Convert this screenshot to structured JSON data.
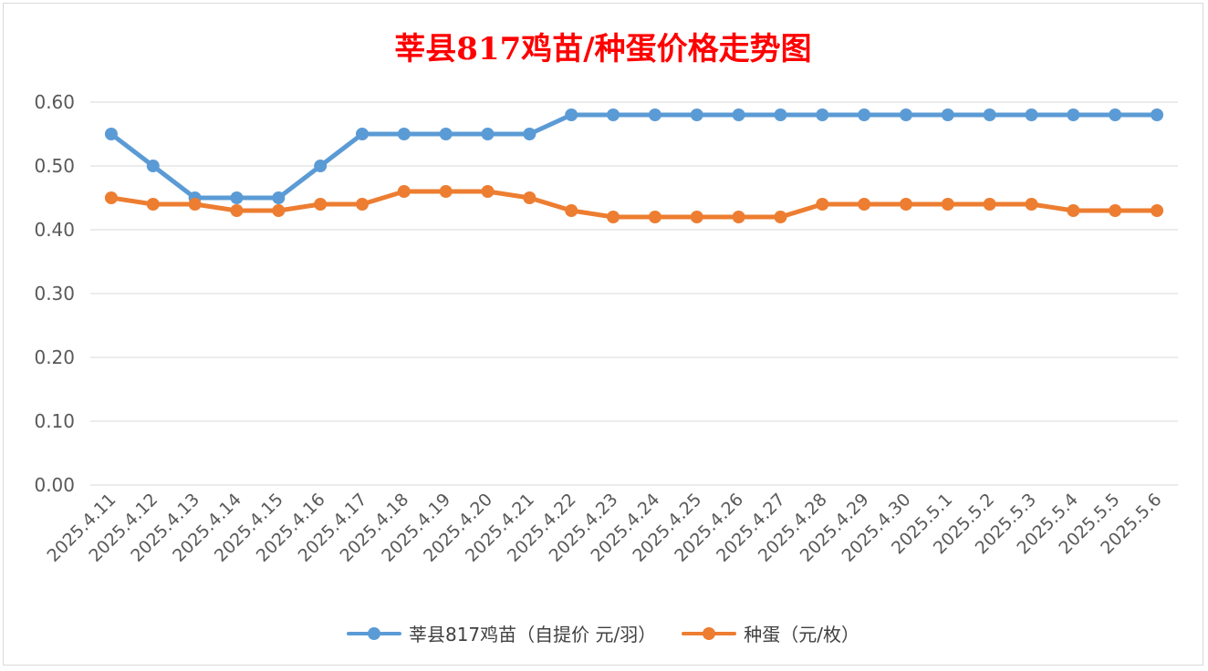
{
  "chart_data": {
    "type": "line",
    "title": "莘县817鸡苗/种蛋价格走势图",
    "categories": [
      "2025.4.11",
      "2025.4.12",
      "2025.4.13",
      "2025.4.14",
      "2025.4.15",
      "2025.4.16",
      "2025.4.17",
      "2025.4.18",
      "2025.4.19",
      "2025.4.20",
      "2025.4.21",
      "2025.4.22",
      "2025.4.23",
      "2025.4.24",
      "2025.4.25",
      "2025.4.26",
      "2025.4.27",
      "2025.4.28",
      "2025.4.29",
      "2025.4.30",
      "2025.5.1",
      "2025.5.2",
      "2025.5.3",
      "2025.5.4",
      "2025.5.5",
      "2025.5.6"
    ],
    "series": [
      {
        "name": "莘县817鸡苗（自提价 元/羽）",
        "color": "#5b9bd5",
        "values": [
          0.55,
          0.5,
          0.45,
          0.45,
          0.45,
          0.5,
          0.55,
          0.55,
          0.55,
          0.55,
          0.55,
          0.58,
          0.58,
          0.58,
          0.58,
          0.58,
          0.58,
          0.58,
          0.58,
          0.58,
          0.58,
          0.58,
          0.58,
          0.58,
          0.58,
          0.58
        ]
      },
      {
        "name": "种蛋（元/枚）",
        "color": "#ed7d31",
        "values": [
          0.45,
          0.44,
          0.44,
          0.43,
          0.43,
          0.44,
          0.44,
          0.46,
          0.46,
          0.46,
          0.45,
          0.43,
          0.42,
          0.42,
          0.42,
          0.42,
          0.42,
          0.44,
          0.44,
          0.44,
          0.44,
          0.44,
          0.44,
          0.43,
          0.43,
          0.43
        ]
      }
    ],
    "ylim": [
      0,
      0.6
    ],
    "yticks": [
      "0.00",
      "0.10",
      "0.20",
      "0.30",
      "0.40",
      "0.50",
      "0.60"
    ],
    "grid": true,
    "legend_position": "bottom"
  }
}
